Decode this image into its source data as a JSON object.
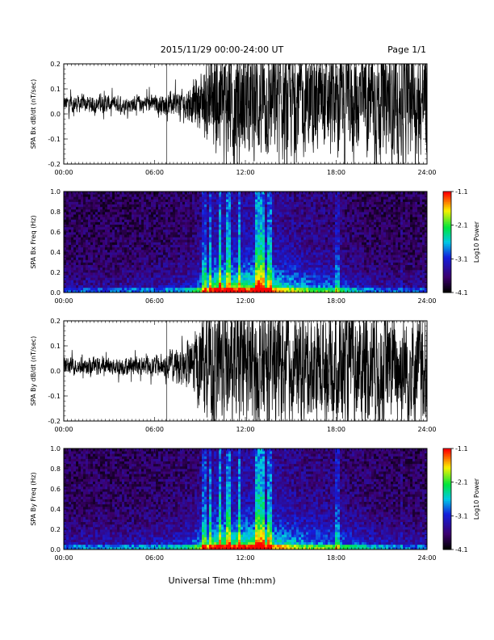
{
  "header": {
    "date_range": "2015/11/29  00:00-24:00 UT",
    "page": "Page 1/1"
  },
  "xlabel": "Universal Time (hh:mm)",
  "x_ticks": [
    "00:00",
    "06:00",
    "12:00",
    "18:00",
    "24:00"
  ],
  "chart_data": [
    {
      "type": "line",
      "ylabel": "SPA Bx dB/dt (nT/sec)",
      "xlim": [
        0,
        24
      ],
      "ylim": [
        -0.2,
        0.2
      ],
      "y_ticks": [
        "0.2",
        "0.1",
        "0.0",
        "-0.1",
        "-0.2"
      ],
      "amplitude_envelope": {
        "x_hours": [
          0,
          3,
          6,
          8,
          9,
          10,
          12,
          14,
          16,
          18,
          20,
          22,
          24
        ],
        "half_range": [
          0.03,
          0.03,
          0.03,
          0.05,
          0.1,
          0.2,
          0.2,
          0.2,
          0.18,
          0.2,
          0.2,
          0.2,
          0.18
        ],
        "center": [
          0.04,
          0.04,
          0.04,
          0.04,
          0.05,
          0.05,
          0.05,
          0.05,
          0.05,
          0.05,
          0.05,
          0.05,
          0.05
        ]
      },
      "color": "#000000"
    },
    {
      "type": "heatmap",
      "ylabel": "SPA Bx Freq (Hz)",
      "xlim": [
        0,
        24
      ],
      "ylim": [
        0,
        1.0
      ],
      "y_ticks": [
        "1.0",
        "0.8",
        "0.6",
        "0.4",
        "0.2",
        "0.0"
      ],
      "colorbar": {
        "label": "Log10 Power",
        "ticks": [
          "-1.1",
          "-2.1",
          "-3.1",
          "-4.1"
        ],
        "range": [
          -4.1,
          -1.1
        ]
      },
      "activity_profile": {
        "x_hours": [
          0,
          3,
          6,
          8,
          9,
          10,
          12,
          13,
          14,
          16,
          18,
          20,
          22,
          24
        ],
        "level": [
          0.2,
          0.2,
          0.25,
          0.3,
          0.5,
          0.85,
          0.8,
          0.9,
          0.7,
          0.55,
          0.45,
          0.25,
          0.2,
          0.2
        ]
      },
      "bright_bands_hours": [
        9.3,
        9.7,
        10.3,
        10.9,
        11.6,
        12.8,
        13.1,
        13.6,
        18.1,
        22.3
      ]
    },
    {
      "type": "line",
      "ylabel": "SPA By dB/dt (nT/sec)",
      "xlim": [
        0,
        24
      ],
      "ylim": [
        -0.2,
        0.2
      ],
      "y_ticks": [
        "0.2",
        "0.1",
        "0.0",
        "-0.1",
        "-0.2"
      ],
      "amplitude_envelope": {
        "x_hours": [
          0,
          3,
          6,
          8,
          9,
          10,
          12,
          14,
          16,
          18,
          20,
          22,
          24
        ],
        "half_range": [
          0.03,
          0.03,
          0.035,
          0.07,
          0.15,
          0.2,
          0.2,
          0.2,
          0.18,
          0.2,
          0.2,
          0.2,
          0.2
        ],
        "center": [
          0.02,
          0.02,
          0.02,
          0.02,
          0.02,
          0.02,
          0.02,
          0.02,
          0.02,
          0.02,
          0.02,
          0.02,
          0.02
        ]
      },
      "color": "#000000"
    },
    {
      "type": "heatmap",
      "ylabel": "SPA By Freq (Hz)",
      "xlim": [
        0,
        24
      ],
      "ylim": [
        0,
        1.0
      ],
      "y_ticks": [
        "1.0",
        "0.8",
        "0.6",
        "0.4",
        "0.2",
        "0.0"
      ],
      "colorbar": {
        "label": "Log10 Power",
        "ticks": [
          "-1.1",
          "-2.1",
          "-3.1",
          "-4.1"
        ],
        "range": [
          -4.1,
          -1.1
        ]
      },
      "activity_profile": {
        "x_hours": [
          0,
          3,
          6,
          8,
          9,
          10,
          12,
          13,
          14,
          16,
          18,
          20,
          22,
          24
        ],
        "level": [
          0.25,
          0.25,
          0.3,
          0.35,
          0.55,
          0.85,
          0.8,
          0.9,
          0.7,
          0.55,
          0.5,
          0.35,
          0.25,
          0.25
        ]
      },
      "bright_bands_hours": [
        9.3,
        9.7,
        10.3,
        10.9,
        11.6,
        12.8,
        13.1,
        13.6,
        18.1,
        22.3
      ]
    }
  ]
}
